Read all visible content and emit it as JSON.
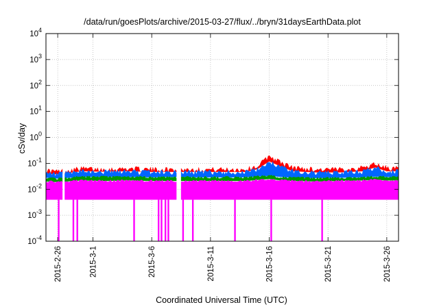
{
  "chart_data": {
    "type": "area",
    "title": "/data/run/goesPlots/archive/2015-03-27/flux/../bryn/31daysEarthData.plot",
    "xlabel": "Coordinated Universal Time (UTC)",
    "ylabel": "cSv/day",
    "y_scale": "log",
    "ylim": [
      0.0001,
      10000
    ],
    "xlim": [
      "2015-02-25",
      "2015-03-27"
    ],
    "grid": true,
    "legend": "none",
    "x_tick_labels": [
      "2015-2-26",
      "2015-3-1",
      "2015-3-6",
      "2015-3-11",
      "2015-3-16",
      "2015-3-21",
      "2015-3-26"
    ],
    "x_tick_dates": [
      "2015-02-26",
      "2015-03-01",
      "2015-03-06",
      "2015-03-11",
      "2015-03-16",
      "2015-03-21",
      "2015-03-26"
    ],
    "y_ticks": [
      {
        "value": 0.0001,
        "base": "10",
        "exp": "-4"
      },
      {
        "value": 0.001,
        "base": "10",
        "exp": "-3"
      },
      {
        "value": 0.01,
        "base": "10",
        "exp": "-2"
      },
      {
        "value": 0.1,
        "base": "10",
        "exp": "-1"
      },
      {
        "value": 1,
        "base": "10",
        "exp": "0"
      },
      {
        "value": 10,
        "base": "10",
        "exp": "1"
      },
      {
        "value": 100,
        "base": "10",
        "exp": "2"
      },
      {
        "value": 1000,
        "base": "10",
        "exp": "3"
      },
      {
        "value": 10000,
        "base": "10",
        "exp": "4"
      }
    ],
    "series": [
      {
        "color": "#ff0000",
        "x": [
          "2015-02-25",
          "2015-02-26",
          "2015-02-28",
          "2015-03-02",
          "2015-03-04",
          "2015-03-06",
          "2015-03-08",
          "2015-03-10",
          "2015-03-12",
          "2015-03-14",
          "2015-03-15",
          "2015-03-16",
          "2015-03-17",
          "2015-03-18",
          "2015-03-20",
          "2015-03-22",
          "2015-03-24",
          "2015-03-25",
          "2015-03-26",
          "2015-03-27"
        ],
        "values": [
          0.055,
          0.05,
          0.065,
          0.06,
          0.065,
          0.06,
          0.06,
          0.06,
          0.06,
          0.06,
          0.08,
          0.2,
          0.11,
          0.07,
          0.06,
          0.06,
          0.07,
          0.1,
          0.07,
          0.065
        ]
      },
      {
        "color": "#0066ff",
        "x": [
          "2015-02-25",
          "2015-02-26",
          "2015-02-28",
          "2015-03-02",
          "2015-03-04",
          "2015-03-06",
          "2015-03-08",
          "2015-03-10",
          "2015-03-12",
          "2015-03-14",
          "2015-03-15",
          "2015-03-16",
          "2015-03-17",
          "2015-03-18",
          "2015-03-20",
          "2015-03-22",
          "2015-03-24",
          "2015-03-25",
          "2015-03-26",
          "2015-03-27"
        ],
        "values": [
          0.04,
          0.038,
          0.05,
          0.048,
          0.05,
          0.047,
          0.047,
          0.047,
          0.047,
          0.047,
          0.06,
          0.12,
          0.075,
          0.05,
          0.045,
          0.045,
          0.05,
          0.07,
          0.05,
          0.05
        ]
      },
      {
        "color": "#009900",
        "x": [
          "2015-02-25",
          "2015-02-26",
          "2015-02-28",
          "2015-03-02",
          "2015-03-04",
          "2015-03-06",
          "2015-03-08",
          "2015-03-10",
          "2015-03-12",
          "2015-03-14",
          "2015-03-15",
          "2015-03-16",
          "2015-03-17",
          "2015-03-18",
          "2015-03-20",
          "2015-03-22",
          "2015-03-24",
          "2015-03-25",
          "2015-03-26",
          "2015-03-27"
        ],
        "values": [
          0.028,
          0.026,
          0.03,
          0.03,
          0.03,
          0.029,
          0.03,
          0.029,
          0.029,
          0.029,
          0.031,
          0.033,
          0.03,
          0.028,
          0.027,
          0.028,
          0.029,
          0.031,
          0.03,
          0.029
        ]
      },
      {
        "color": "#ff00ff",
        "x": [
          "2015-02-25",
          "2015-02-26",
          "2015-02-28",
          "2015-03-02",
          "2015-03-04",
          "2015-03-06",
          "2015-03-08",
          "2015-03-10",
          "2015-03-12",
          "2015-03-14",
          "2015-03-15",
          "2015-03-16",
          "2015-03-17",
          "2015-03-18",
          "2015-03-20",
          "2015-03-22",
          "2015-03-24",
          "2015-03-25",
          "2015-03-26",
          "2015-03-27"
        ],
        "values": [
          0.02,
          0.019,
          0.022,
          0.021,
          0.022,
          0.021,
          0.021,
          0.021,
          0.021,
          0.021,
          0.023,
          0.025,
          0.022,
          0.021,
          0.02,
          0.021,
          0.022,
          0.023,
          0.022,
          0.022
        ],
        "lower": 0.004
      }
    ],
    "gaps": [
      {
        "from": "2015-02-26T10:00",
        "to": "2015-02-26T14:00"
      },
      {
        "from": "2015-03-08T04:00",
        "to": "2015-03-08T10:00"
      }
    ],
    "dropouts": [
      "2015-02-26T02:00",
      "2015-02-27T08:00",
      "2015-02-27T16:00",
      "2015-03-04T12:00",
      "2015-03-06T14:00",
      "2015-03-06T20:00",
      "2015-03-07T04:00",
      "2015-03-07T10:00",
      "2015-03-08T16:00",
      "2015-03-09T12:00",
      "2015-03-13T02:00",
      "2015-03-16T04:00",
      "2015-03-20T12:00"
    ]
  }
}
